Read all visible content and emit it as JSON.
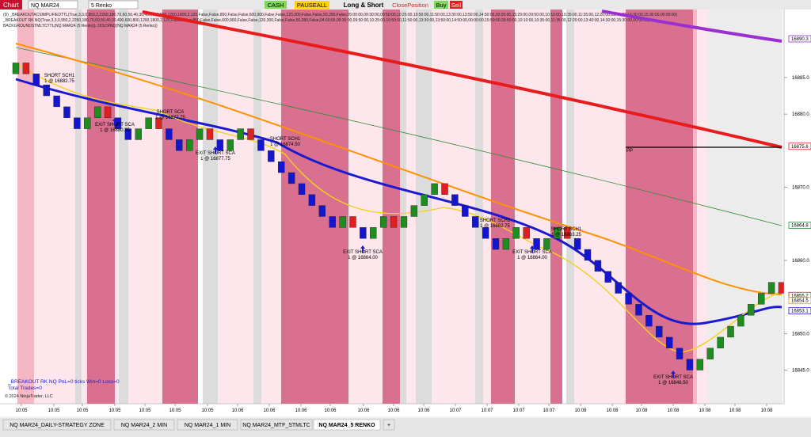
{
  "toolbar": {
    "app": "Chart",
    "instrument": "NQ MAR24",
    "period": "5 Renko",
    "buttons": [
      "CASH",
      "PAUSEALL",
      "Long & Short",
      "ClosePosition",
      "Buy",
      "Sell"
    ]
  },
  "indicator_lines": [
    "(D) _BREAKOUTACSIMPLIFIEDTTL(True,3,3,0,950,2,2260,180,70,60,50,40,30,400,600,800,1200,1800,2,120,False,False,850,False,False,600,900,False,False,120,300,False,False,50,280,False,05:00:00,09:30:00,09:50:00,10:25:00,10:50:00,11:50:00,13:30:00,13:50:00,14:50:00,00:00:00,15:29:00,09:50:00,10:10:00,10:35:00,11:35:00,12:20:00,13:40:00,14:30:00,15:30:00,00:00:00)",
    "_BREAKOUT RK NQ(True,3,3,0,950,2,2250,180,70,60,50,40,30,400,600,800,1200,1800,2,120,False,False,850,False,False,600,900,False,False,120,300,False,False,50,280,False,04:00:00,09:30:00,09:50:00,10:25:00,10:50:00,11:50:00,13:30:00,13:50:00,14:50:00,00:00:00,15:59:00,09:50:00,10:10:00,10:35:00,11:35:00,12:20:00,13:40:00,14:30:00,15:30:00,00:00:00)",
    "BACKGROUNDSTMLTCTTL(NQ MAR24 (5 Renko)), DISCRNQ(NQ MAR24 (5 Renko))"
  ],
  "price_axis": {
    "ylim": [
      16840.4,
      16894.3
    ],
    "ticks": [
      {
        "value": 16885,
        "label": "16885.0"
      },
      {
        "value": 16880,
        "label": "16880.0"
      },
      {
        "value": 16870,
        "label": "16870.0"
      },
      {
        "value": 16860,
        "label": "16860.0"
      },
      {
        "value": 16850,
        "label": "16850.0"
      },
      {
        "value": 16845,
        "label": "16845.0"
      }
    ],
    "markers": [
      {
        "value": 16890.3,
        "color": "#9b30d0"
      },
      {
        "value": 16875.6,
        "color": "#e02020"
      },
      {
        "value": 16864.8,
        "color": "#2e8b3a"
      },
      {
        "value": 16855.2,
        "color": "#e02020"
      },
      {
        "value": 16854.5,
        "color": "#ff9900"
      },
      {
        "value": 16853.1,
        "color": "#1a1ad0"
      }
    ]
  },
  "bricks": [
    [
      16885.5,
      16887
    ],
    [
      16887,
      16885.5
    ],
    [
      16885.5,
      16884
    ],
    [
      16884,
      16882.5
    ],
    [
      16882.5,
      16881
    ],
    [
      16881,
      16879.5
    ],
    [
      16879.5,
      16878
    ],
    [
      16878,
      16879.5
    ],
    [
      16879.5,
      16881
    ],
    [
      16881,
      16879.5
    ],
    [
      16879.5,
      16878
    ],
    [
      16878,
      16876.5
    ],
    [
      16876.5,
      16878
    ],
    [
      16878,
      16879.5
    ],
    [
      16879.5,
      16878
    ],
    [
      16878,
      16876.5
    ],
    [
      16876.5,
      16875
    ],
    [
      16875,
      16876.5
    ],
    [
      16876.5,
      16878
    ],
    [
      16878,
      16876.5
    ],
    [
      16876.5,
      16875
    ],
    [
      16875,
      16876.5
    ],
    [
      16876.5,
      16878
    ],
    [
      16878,
      16876.5
    ],
    [
      16876.5,
      16875
    ],
    [
      16875,
      16873.5
    ],
    [
      16873.5,
      16872
    ],
    [
      16872,
      16870.5
    ],
    [
      16870.5,
      16869
    ],
    [
      16869,
      16867.5
    ],
    [
      16867.5,
      16866
    ],
    [
      16866,
      16864.5
    ],
    [
      16864.5,
      16866
    ],
    [
      16866,
      16864.5
    ],
    [
      16864.5,
      16863
    ],
    [
      16863,
      16864.5
    ],
    [
      16864.5,
      16866
    ],
    [
      16866,
      16864.5
    ],
    [
      16864.5,
      16866
    ],
    [
      16866,
      16867.5
    ],
    [
      16867.5,
      16869
    ],
    [
      16869,
      16870.5
    ],
    [
      16870.5,
      16869
    ],
    [
      16869,
      16867.5
    ],
    [
      16867.5,
      16866
    ],
    [
      16866,
      16864.5
    ],
    [
      16864.5,
      16863
    ],
    [
      16863,
      16861.5
    ],
    [
      16861.5,
      16863
    ],
    [
      16863,
      16864.5
    ],
    [
      16864.5,
      16863
    ],
    [
      16863,
      16861.5
    ],
    [
      16861.5,
      16863
    ],
    [
      16863,
      16864.5
    ],
    [
      16864.5,
      16863
    ],
    [
      16863,
      16861.5
    ],
    [
      16861.5,
      16860
    ],
    [
      16860,
      16858.5
    ],
    [
      16858.5,
      16857
    ],
    [
      16857,
      16855.5
    ],
    [
      16855.5,
      16854
    ],
    [
      16854,
      16852.5
    ],
    [
      16852.5,
      16851
    ],
    [
      16851,
      16849.5
    ],
    [
      16849.5,
      16848
    ],
    [
      16848,
      16846.5
    ],
    [
      16846.5,
      16845
    ],
    [
      16845,
      16846.5
    ],
    [
      16846.5,
      16848
    ],
    [
      16848,
      16849.5
    ],
    [
      16849.5,
      16851
    ],
    [
      16851,
      16852.5
    ],
    [
      16852.5,
      16854
    ],
    [
      16854,
      16855.5
    ],
    [
      16855.5,
      16857
    ],
    [
      16857,
      16855.5
    ]
  ],
  "annotations": [
    {
      "label": "SHORT SCH1",
      "detail": "1 @ 16882.75"
    },
    {
      "label": "EXIT SHORT SCA",
      "detail": "1 @ 16880.25"
    },
    {
      "label": "SHORT SCA",
      "detail": "1 @ 16877.75"
    },
    {
      "label": "EXIT SHORT SCA",
      "detail": "1 @ 16877.75"
    },
    {
      "label": "SHORT SCH1",
      "detail": "1 @ 16874.50"
    },
    {
      "label": "EXIT SHORT SCA",
      "detail": "1 @ 16864.00"
    },
    {
      "label": "SHORT SCH1",
      "detail": "1 @ 16862.75"
    },
    {
      "label": "EXIT SHORT SCA",
      "detail": "1 @ 16864.00"
    },
    {
      "label": "SHORT SCH1",
      "detail": "1 @ 16863.25"
    },
    {
      "label": "EXIT SHORT SCA",
      "detail": "1 @ 16846.50"
    }
  ],
  "pivot_label": "PP",
  "stats": [
    "_BREAKOUT RK NQ PnL=0 ticks Win=0 Loss=0",
    "Total Trades=0"
  ],
  "copyright": "© 2024 NinjaTrader, LLC",
  "time_labels": [
    "10:05",
    "10:05",
    "10:05",
    "10:05",
    "10:05",
    "10:05",
    "10:05",
    "10:06",
    "10:06",
    "10:06",
    "10:06",
    "10:06",
    "10:06",
    "10:06",
    "10:07",
    "10:07",
    "10:07",
    "10:07",
    "10:08",
    "10:08",
    "10:08",
    "10:08",
    "10:08",
    "10:08",
    "10:08"
  ],
  "tabs": [
    "NQ MAR24_DAILY-STRATEGY ZONE",
    "NQ MAR24_2 MIN",
    "NQ MAR24_1 MIN",
    "NQ MAR24_MTF_STMLTC",
    "NQ MAR24_5 RENKO",
    "+"
  ]
}
